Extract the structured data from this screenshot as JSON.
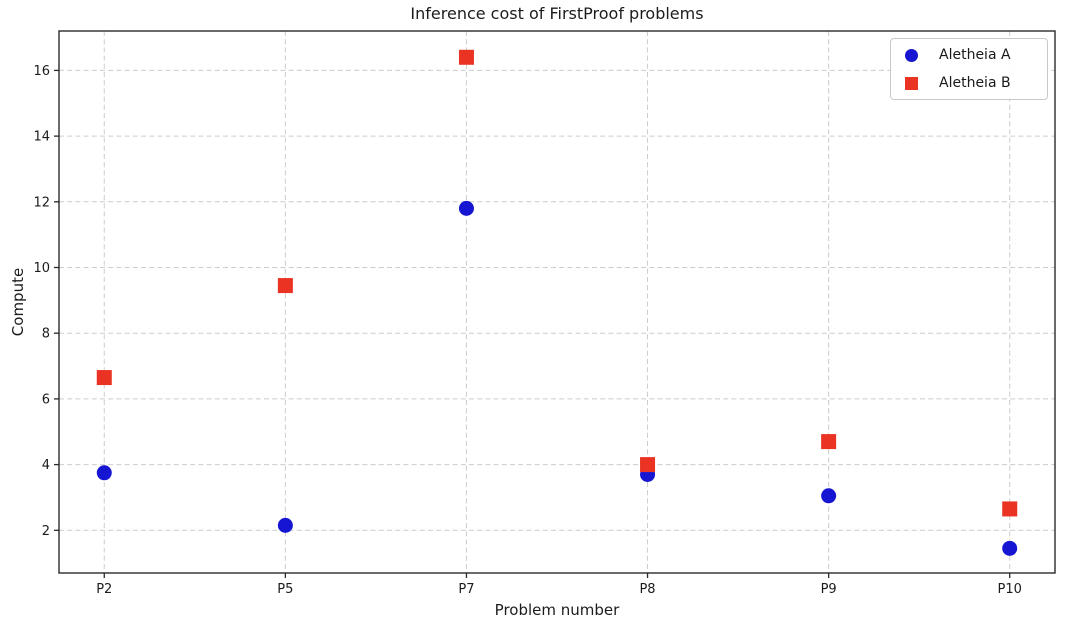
{
  "chart_data": {
    "type": "scatter",
    "title": "Inference cost of FirstProof problems",
    "xlabel": "Problem number",
    "ylabel": "Compute",
    "categories": [
      "P2",
      "P5",
      "P7",
      "P8",
      "P9",
      "P10"
    ],
    "series": [
      {
        "name": "Aletheia A",
        "marker": "circle",
        "color": "#1515d2",
        "values": [
          3.75,
          2.15,
          11.8,
          3.7,
          3.05,
          1.45
        ]
      },
      {
        "name": "Aletheia B",
        "marker": "square",
        "color": "#ea3323",
        "values": [
          6.65,
          9.45,
          16.4,
          4.0,
          4.7,
          2.65
        ]
      }
    ],
    "yticks": [
      2,
      4,
      6,
      8,
      10,
      12,
      14,
      16
    ],
    "ylim": [
      0.7,
      17.2
    ],
    "grid": true,
    "grid_style": "dashed",
    "grid_color": "#cccccc",
    "spine_color": "#2a2a2a",
    "tick_label_color": "#1c1c1c",
    "background": "#ffffff",
    "legend_position": "upper right"
  }
}
